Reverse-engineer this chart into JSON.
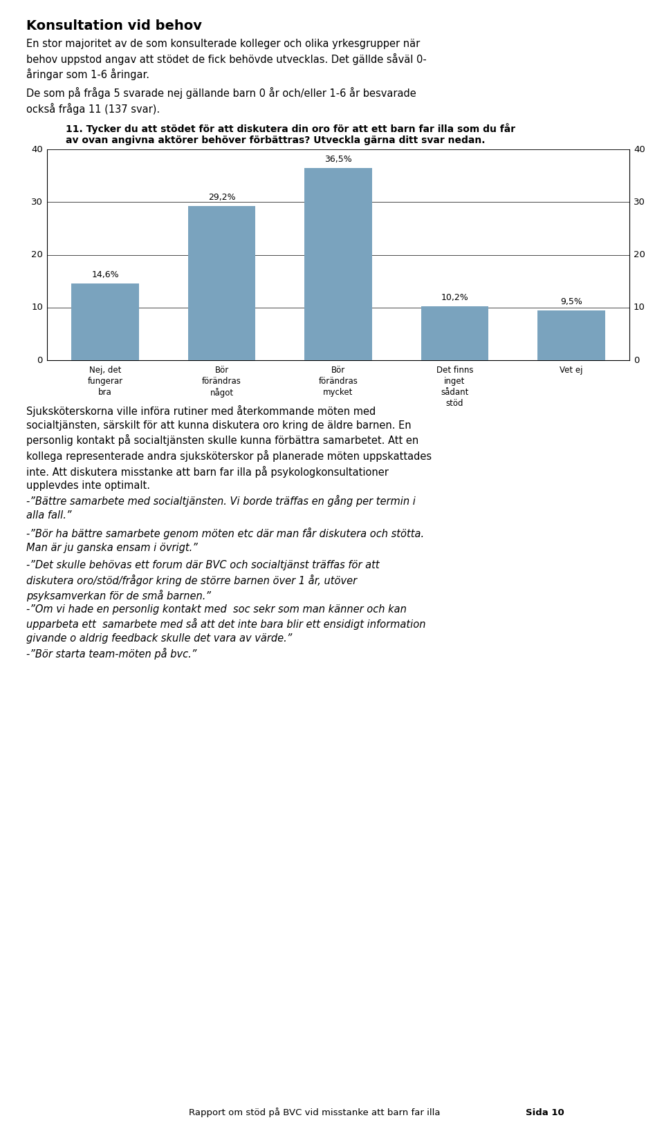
{
  "page_title": "Konsultation vid behov",
  "page_intro": "En stor majoritet av de som konsulterade kolleger och olika yrkesgrupper när\nbehov uppstod angav att stödet de fick behövde utvecklas. Det gällde såväl 0-\nåringar som 1-6 åringar.",
  "page_intro2": "De som på fråga 5 svarade nej gällande barn 0 år och/eller 1-6 år besvarade\nockså fråga 11 (137 svar).",
  "chart_title_line1": "11. Tycker du att stödet för att diskutera din oro för att ett barn far illa som du får",
  "chart_title_line2": "av ovan angivna aktörer behöver förbättras? Utveckla gärna ditt svar nedan.",
  "categories": [
    "Nej, det\nfungerar\nbra",
    "Bör\nförändras\nnågot",
    "Bör\nförändras\nmycket",
    "Det finns\ninget\nsådant\nstöd",
    "Vet ej"
  ],
  "values": [
    14.6,
    29.2,
    36.5,
    10.2,
    9.5
  ],
  "labels": [
    "14,6%",
    "29,2%",
    "36,5%",
    "10,2%",
    "9,5%"
  ],
  "bar_color": "#7aa3be",
  "ylim": [
    0,
    40
  ],
  "yticks": [
    0,
    10,
    20,
    30,
    40
  ],
  "body_text": "Sjuksköterskorna ville införa rutiner med återkommande möten med\nsocialtjänsten, särskilt för att kunna diskutera oro kring de äldre barnen. En\npersonlig kontakt på socialtjänsten skulle kunna förbättra samarbetet. Att en\nkollega representerade andra sjuksköterskor på planerade möten uppskattades\ninte. Att diskutera misstanke att barn far illa på psykologkonsultationer\nupplevdes inte optimalt.",
  "quote1": "-”Bättre samarbete med socialtjänsten. Vi borde träffas en gång per termin i\nalla fall.”",
  "quote2": "-”Bör ha bättre samarbete genom möten etc där man får diskutera och stötta.\nMan är ju ganska ensam i övrigt.”",
  "quote3": "-”Det skulle behövas ett forum där BVC och socialtjänst träffas för att\ndiskutera oro/stöd/frågor kring de större barnen över 1 år, utöver\npsyksamverkan för de små barnen.”",
  "quote4": "-”Om vi hade en personlig kontakt med  soc sekr som man känner och kan\nupparbeta ett  samarbete med så att det inte bara blir ett ensidigt information\ngivande o aldrig feedback skulle det vara av värde.”",
  "quote5": "-”Bör starta team-möten på bvc.”",
  "footer": "Rapport om stöd på BVC vid misstanke att barn far illa",
  "footer_page": "Sida 10",
  "background_color": "#ffffff",
  "text_color": "#000000"
}
